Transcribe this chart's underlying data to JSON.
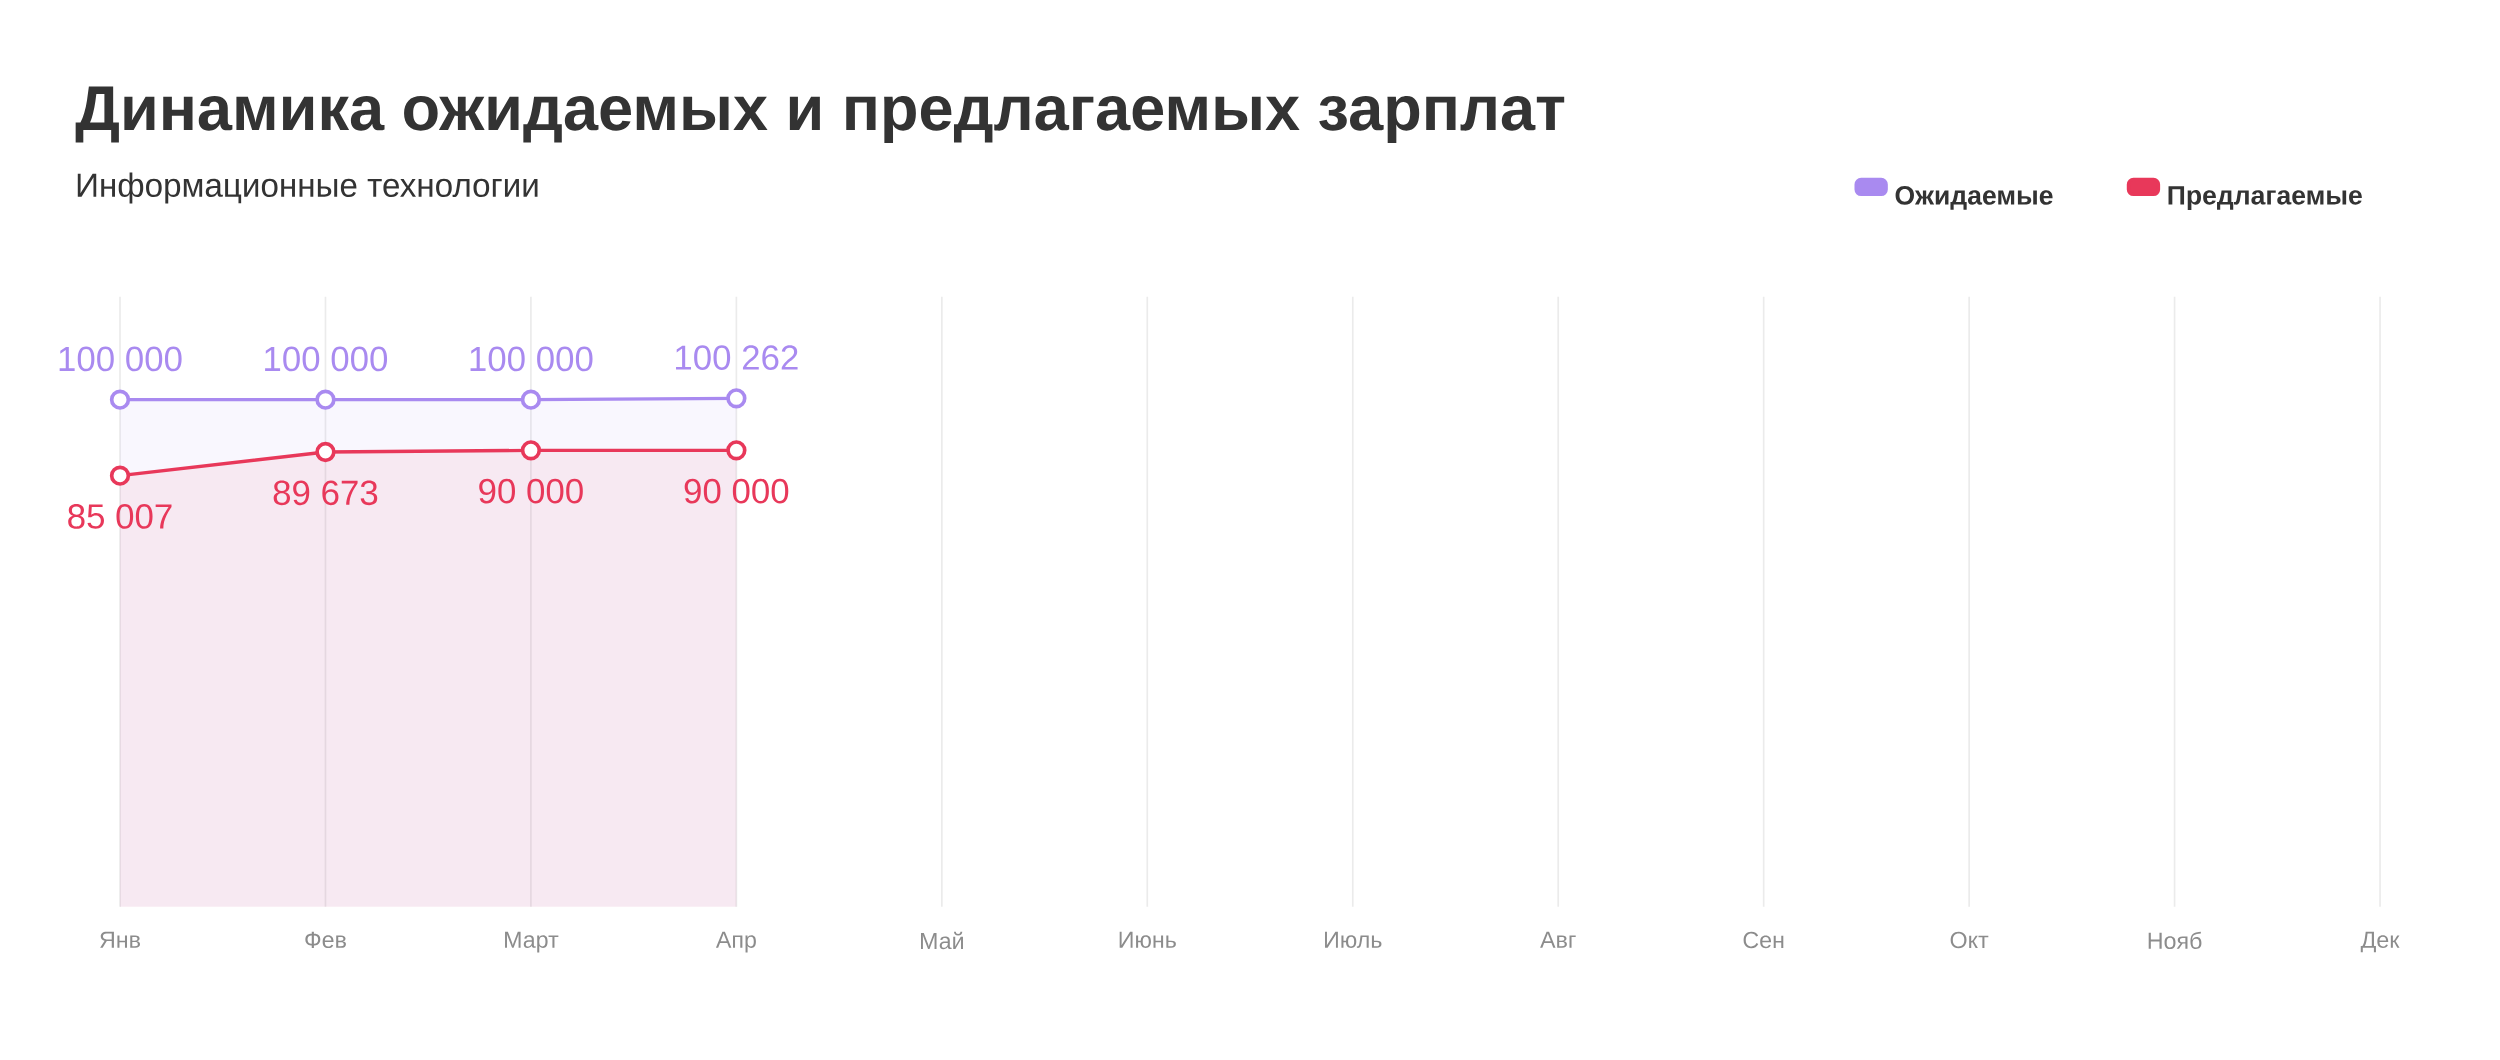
{
  "chart_data": {
    "type": "area",
    "title": "Динамика ожидаемых и предлагаемых зарплат",
    "subtitle": "Информационные технологии",
    "categories": [
      "Янв",
      "Фев",
      "Март",
      "Апр",
      "Май",
      "Июнь",
      "Июль",
      "Авг",
      "Сен",
      "Окт",
      "Нояб",
      "Дек"
    ],
    "series": [
      {
        "name": "Ожидаемые",
        "color": "#a98af0",
        "values": [
          100000,
          100000,
          100000,
          100262,
          null,
          null,
          null,
          null,
          null,
          null,
          null,
          null
        ],
        "value_labels": [
          "100 000",
          "100 000",
          "100 000",
          "100 262",
          null,
          null,
          null,
          null,
          null,
          null,
          null,
          null
        ]
      },
      {
        "name": "Предлагаемые",
        "color": "#e8385a",
        "values": [
          85007,
          89673,
          90000,
          90000,
          null,
          null,
          null,
          null,
          null,
          null,
          null,
          null
        ],
        "value_labels": [
          "85 007",
          "89 673",
          "90 000",
          "90 000",
          null,
          null,
          null,
          null,
          null,
          null,
          null,
          null
        ]
      }
    ],
    "grid": "x",
    "legend": "top right",
    "marker": "circle",
    "tick_labels": "x"
  }
}
